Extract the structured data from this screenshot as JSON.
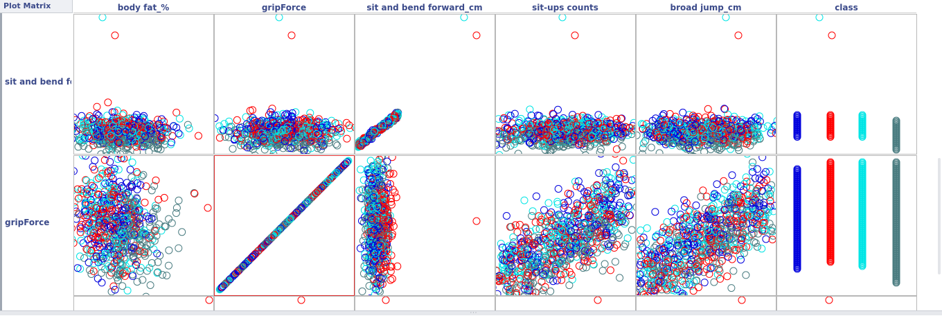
{
  "window": {
    "title": "Plot Matrix"
  },
  "matrix": {
    "columns": [
      "body fat_%",
      "gripForce",
      "sit and bend forward_cm",
      "sit-ups counts",
      "broad jump_cm",
      "class"
    ],
    "rows": [
      "sit and bend fo",
      "gripForce"
    ],
    "highlighted_cell": "gripForce vs gripForce",
    "class_colors": {
      "A": "#0000dd",
      "B": "#ff0000",
      "C": "#00e5e5",
      "D": "#4a7c80"
    },
    "frame_color": "#b8b8b8",
    "highlight_color": "#e03030"
  },
  "scrollbar": {
    "thumb_glyph": "···"
  }
}
